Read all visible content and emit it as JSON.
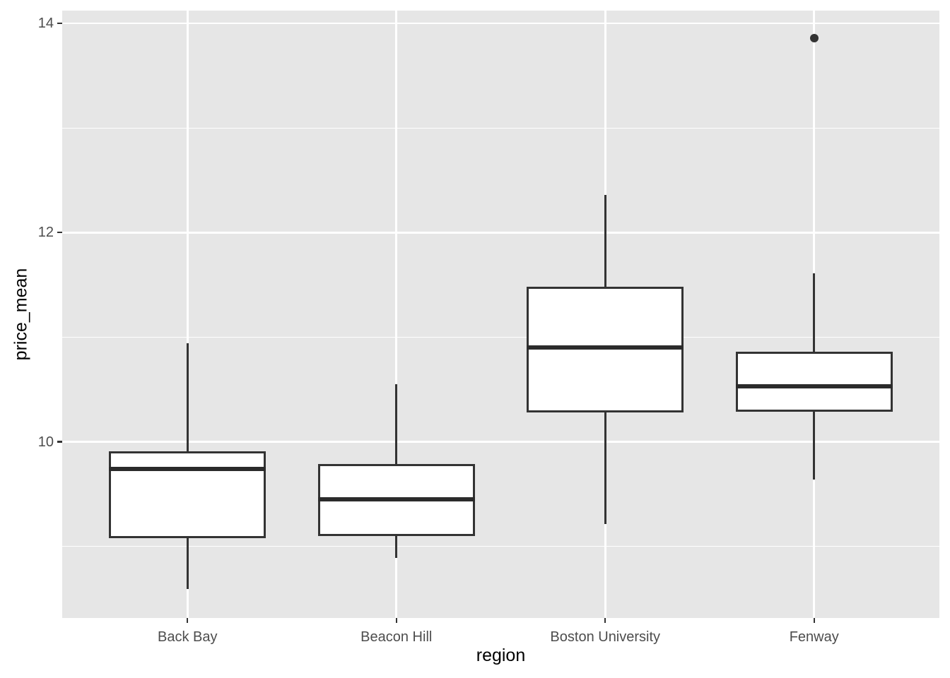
{
  "chart_data": {
    "type": "boxplot",
    "title": "",
    "xlabel": "region",
    "ylabel": "price_mean",
    "categories": [
      "Back Bay",
      "Beacon Hill",
      "Boston University",
      "Fenway"
    ],
    "series": [
      {
        "category": "Back Bay",
        "whisker_low": 8.59,
        "q1": 9.08,
        "median": 9.74,
        "q3": 9.91,
        "whisker_high": 10.94,
        "outliers": []
      },
      {
        "category": "Beacon Hill",
        "whisker_low": 8.89,
        "q1": 9.1,
        "median": 9.45,
        "q3": 9.79,
        "whisker_high": 10.55,
        "outliers": []
      },
      {
        "category": "Boston University",
        "whisker_low": 9.21,
        "q1": 10.28,
        "median": 10.9,
        "q3": 11.48,
        "whisker_high": 12.36,
        "outliers": []
      },
      {
        "category": "Fenway",
        "whisker_low": 9.64,
        "q1": 10.29,
        "median": 10.53,
        "q3": 10.86,
        "whisker_high": 11.61,
        "outliers": [
          13.86
        ]
      }
    ],
    "y_axis": {
      "tick_labels": [
        "10",
        "12",
        "14"
      ],
      "ticks": [
        10,
        12,
        14
      ],
      "minor_ticks": [
        9,
        11,
        13
      ],
      "range": [
        8.32,
        14.12
      ]
    },
    "layout": {
      "grid": true,
      "legend": false,
      "panel_style": "ggplot-grey"
    }
  },
  "colors": {
    "panel_background": "#E6E6E6",
    "gridline": "#FFFFFF",
    "box_stroke": "#333333",
    "box_fill": "#FFFFFF",
    "median": "#2B2B2B",
    "outlier": "#333333",
    "tick_label": "#4D4D4D",
    "axis_title": "#000000",
    "figure_background": "#FFFFFF"
  }
}
